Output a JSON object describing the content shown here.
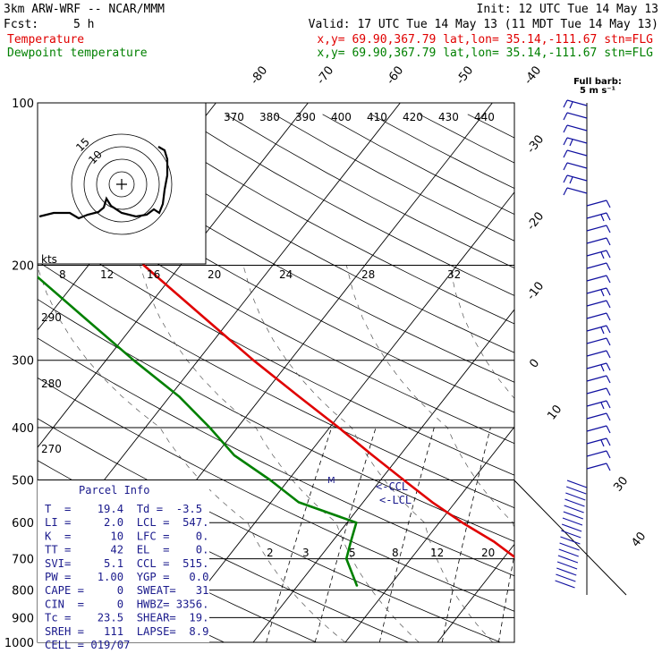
{
  "header": {
    "title": "3km ARW-WRF -- NCAR/MMM",
    "init": "Init: 12 UTC Tue 14 May 13",
    "fcst_label": "Fcst:",
    "fcst_value": "5 h",
    "valid": "Valid: 17 UTC Tue 14 May 13 (11 MDT Tue 14 May 13)",
    "rows": [
      {
        "name": "Temperature",
        "info": "x,y= 69.90,367.79   lat,lon= 35.14,-111.67   stn=FLG",
        "color": "#e00000"
      },
      {
        "name": "Dewpoint temperature",
        "info": "x,y= 69.90,367.79   lat,lon= 35.14,-111.67   stn=FLG",
        "color": "#008000"
      }
    ]
  },
  "barb_legend": {
    "title": "Full barb:",
    "unit": "5 m s⁻¹"
  },
  "hodograph": {
    "rings": [
      "15",
      "10"
    ],
    "speed_unit": "kts",
    "speed_ticks": [
      "8",
      "12",
      "16",
      "20",
      "24",
      "28",
      "32"
    ]
  },
  "theta_labels": [
    "370",
    "380",
    "390",
    "400",
    "410",
    "420",
    "430",
    "440"
  ],
  "theta_left_labels": [
    "290",
    "280",
    "270"
  ],
  "mixing_ratio_labels": [
    "2",
    "3",
    "5",
    "8",
    "12",
    "20"
  ],
  "isotherm_labels": [
    "-80",
    "-70",
    "-60",
    "-50",
    "-40",
    "-30",
    "-20",
    "-10",
    "0",
    "10",
    "30",
    "40"
  ],
  "ccl_label": "<-CCL",
  "lcl_label": "<-LCL",
  "parcel": {
    "title": "Parcel Info",
    "rows": [
      "T  =    19.4  Td =  -3.5",
      "LI =     2.0  LCL =  547.",
      "K  =      10  LFC =    0.",
      "TT =      42  EL  =    0.",
      "SVI=     5.1  CCL =  515.",
      "PW =    1.00  YGP =   0.0",
      "CAPE =     0  SWEAT=   31",
      "CIN  =     0  HWBZ= 3356.",
      "Tc =    23.5  SHEAR=  19.",
      "SREH =   111  LAPSE=  8.9",
      "CELL = 019/07"
    ]
  },
  "colors": {
    "temperature": "#e00000",
    "dewpoint": "#008000",
    "barbs": "#1010a0",
    "grid": "#000000",
    "parcel": "#1a1a8c"
  },
  "chart_data": {
    "type": "line",
    "title": "",
    "xlabel": "",
    "ylabel": "",
    "y_axis": "pressure (hPa), logarithmic",
    "pressure_ticks": [
      100,
      200,
      300,
      400,
      500,
      600,
      700,
      800,
      900,
      1000
    ],
    "ylim": [
      1000,
      100
    ],
    "series": [
      {
        "name": "Temperature",
        "color": "#e00000",
        "points": [
          [
            787,
            19.4
          ],
          [
            760,
            16.5
          ],
          [
            700,
            11.5
          ],
          [
            650,
            7.5
          ],
          [
            600,
            2.5
          ],
          [
            550,
            -2.5
          ],
          [
            500,
            -7.5
          ],
          [
            450,
            -13
          ],
          [
            400,
            -19
          ],
          [
            350,
            -26
          ],
          [
            300,
            -34
          ],
          [
            250,
            -43
          ],
          [
            200,
            -54
          ],
          [
            180,
            -57
          ],
          [
            150,
            -58
          ],
          [
            130,
            -59
          ],
          [
            115,
            -61
          ],
          [
            100,
            -64
          ]
        ]
      },
      {
        "name": "Dewpoint temperature",
        "color": "#008000",
        "points": [
          [
            787,
            -3.5
          ],
          [
            700,
            -7
          ],
          [
            650,
            -8
          ],
          [
            600,
            -9
          ],
          [
            550,
            -17
          ],
          [
            500,
            -22
          ],
          [
            450,
            -28
          ],
          [
            400,
            -33
          ],
          [
            350,
            -39
          ],
          [
            300,
            -47
          ],
          [
            250,
            -56
          ],
          [
            200,
            -67
          ],
          [
            180,
            -72
          ],
          [
            150,
            -71
          ],
          [
            130,
            -73
          ],
          [
            100,
            -75
          ]
        ]
      }
    ]
  }
}
